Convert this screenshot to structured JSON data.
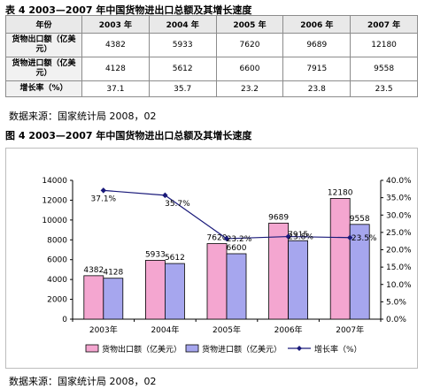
{
  "table_title": "表 4 2003—2007 年中国货物进出口总额及其增长速度",
  "chart_title": "图 4 2003—2007 年中国货物进出口总额及其增长速度",
  "source_note": "数据来源：国家统计局 2008，02",
  "table": {
    "headers": [
      "年份",
      "2003 年",
      "2004 年",
      "2005 年",
      "2006 年",
      "2007 年"
    ],
    "rows": [
      {
        "label": "货物出口额（亿美元）",
        "cells": [
          "4382",
          "5933",
          "7620",
          "9689",
          "12180"
        ]
      },
      {
        "label": "货物进口额（亿美元）",
        "cells": [
          "4128",
          "5612",
          "6600",
          "7915",
          "9558"
        ]
      },
      {
        "label": "增长率（%）",
        "cells": [
          "37.1",
          "35.7",
          "23.2",
          "23.8",
          "23.5"
        ]
      }
    ]
  },
  "colors": {
    "export_bar": "#f4a6d0",
    "import_bar": "#a6a6ee",
    "growth_line": "#1a1a7a"
  },
  "chart_data": {
    "type": "bar",
    "categories": [
      "2003年",
      "2004年",
      "2005年",
      "2006年",
      "2007年"
    ],
    "series": [
      {
        "name": "货物出口额（亿美元）",
        "values": [
          4382,
          5933,
          7620,
          9689,
          12180
        ],
        "labels": [
          "4382",
          "5933",
          "7620",
          "9689",
          "12180"
        ]
      },
      {
        "name": "货物进口额（亿美元）",
        "values": [
          4128,
          5612,
          6600,
          7915,
          9558
        ],
        "labels": [
          "4128",
          "5612",
          "6600",
          "7915",
          "9558"
        ]
      },
      {
        "name": "增长率（%）",
        "type": "line",
        "axis": "right",
        "values": [
          37.1,
          35.7,
          23.2,
          23.8,
          23.5
        ],
        "labels": [
          "37.1%",
          "35.7%",
          "23.2%",
          "23.8%",
          "23.5%"
        ]
      }
    ],
    "ylim": [
      0,
      14000
    ],
    "yticks": [
      "0",
      "2000",
      "4000",
      "6000",
      "8000",
      "10000",
      "12000",
      "14000"
    ],
    "y2lim": [
      0,
      40
    ],
    "y2ticks": [
      "0.0%",
      "5.0%",
      "10.0%",
      "15.0%",
      "20.0%",
      "25.0%",
      "30.0%",
      "35.0%",
      "40.0%"
    ],
    "grid": false,
    "legend": "bottom"
  }
}
